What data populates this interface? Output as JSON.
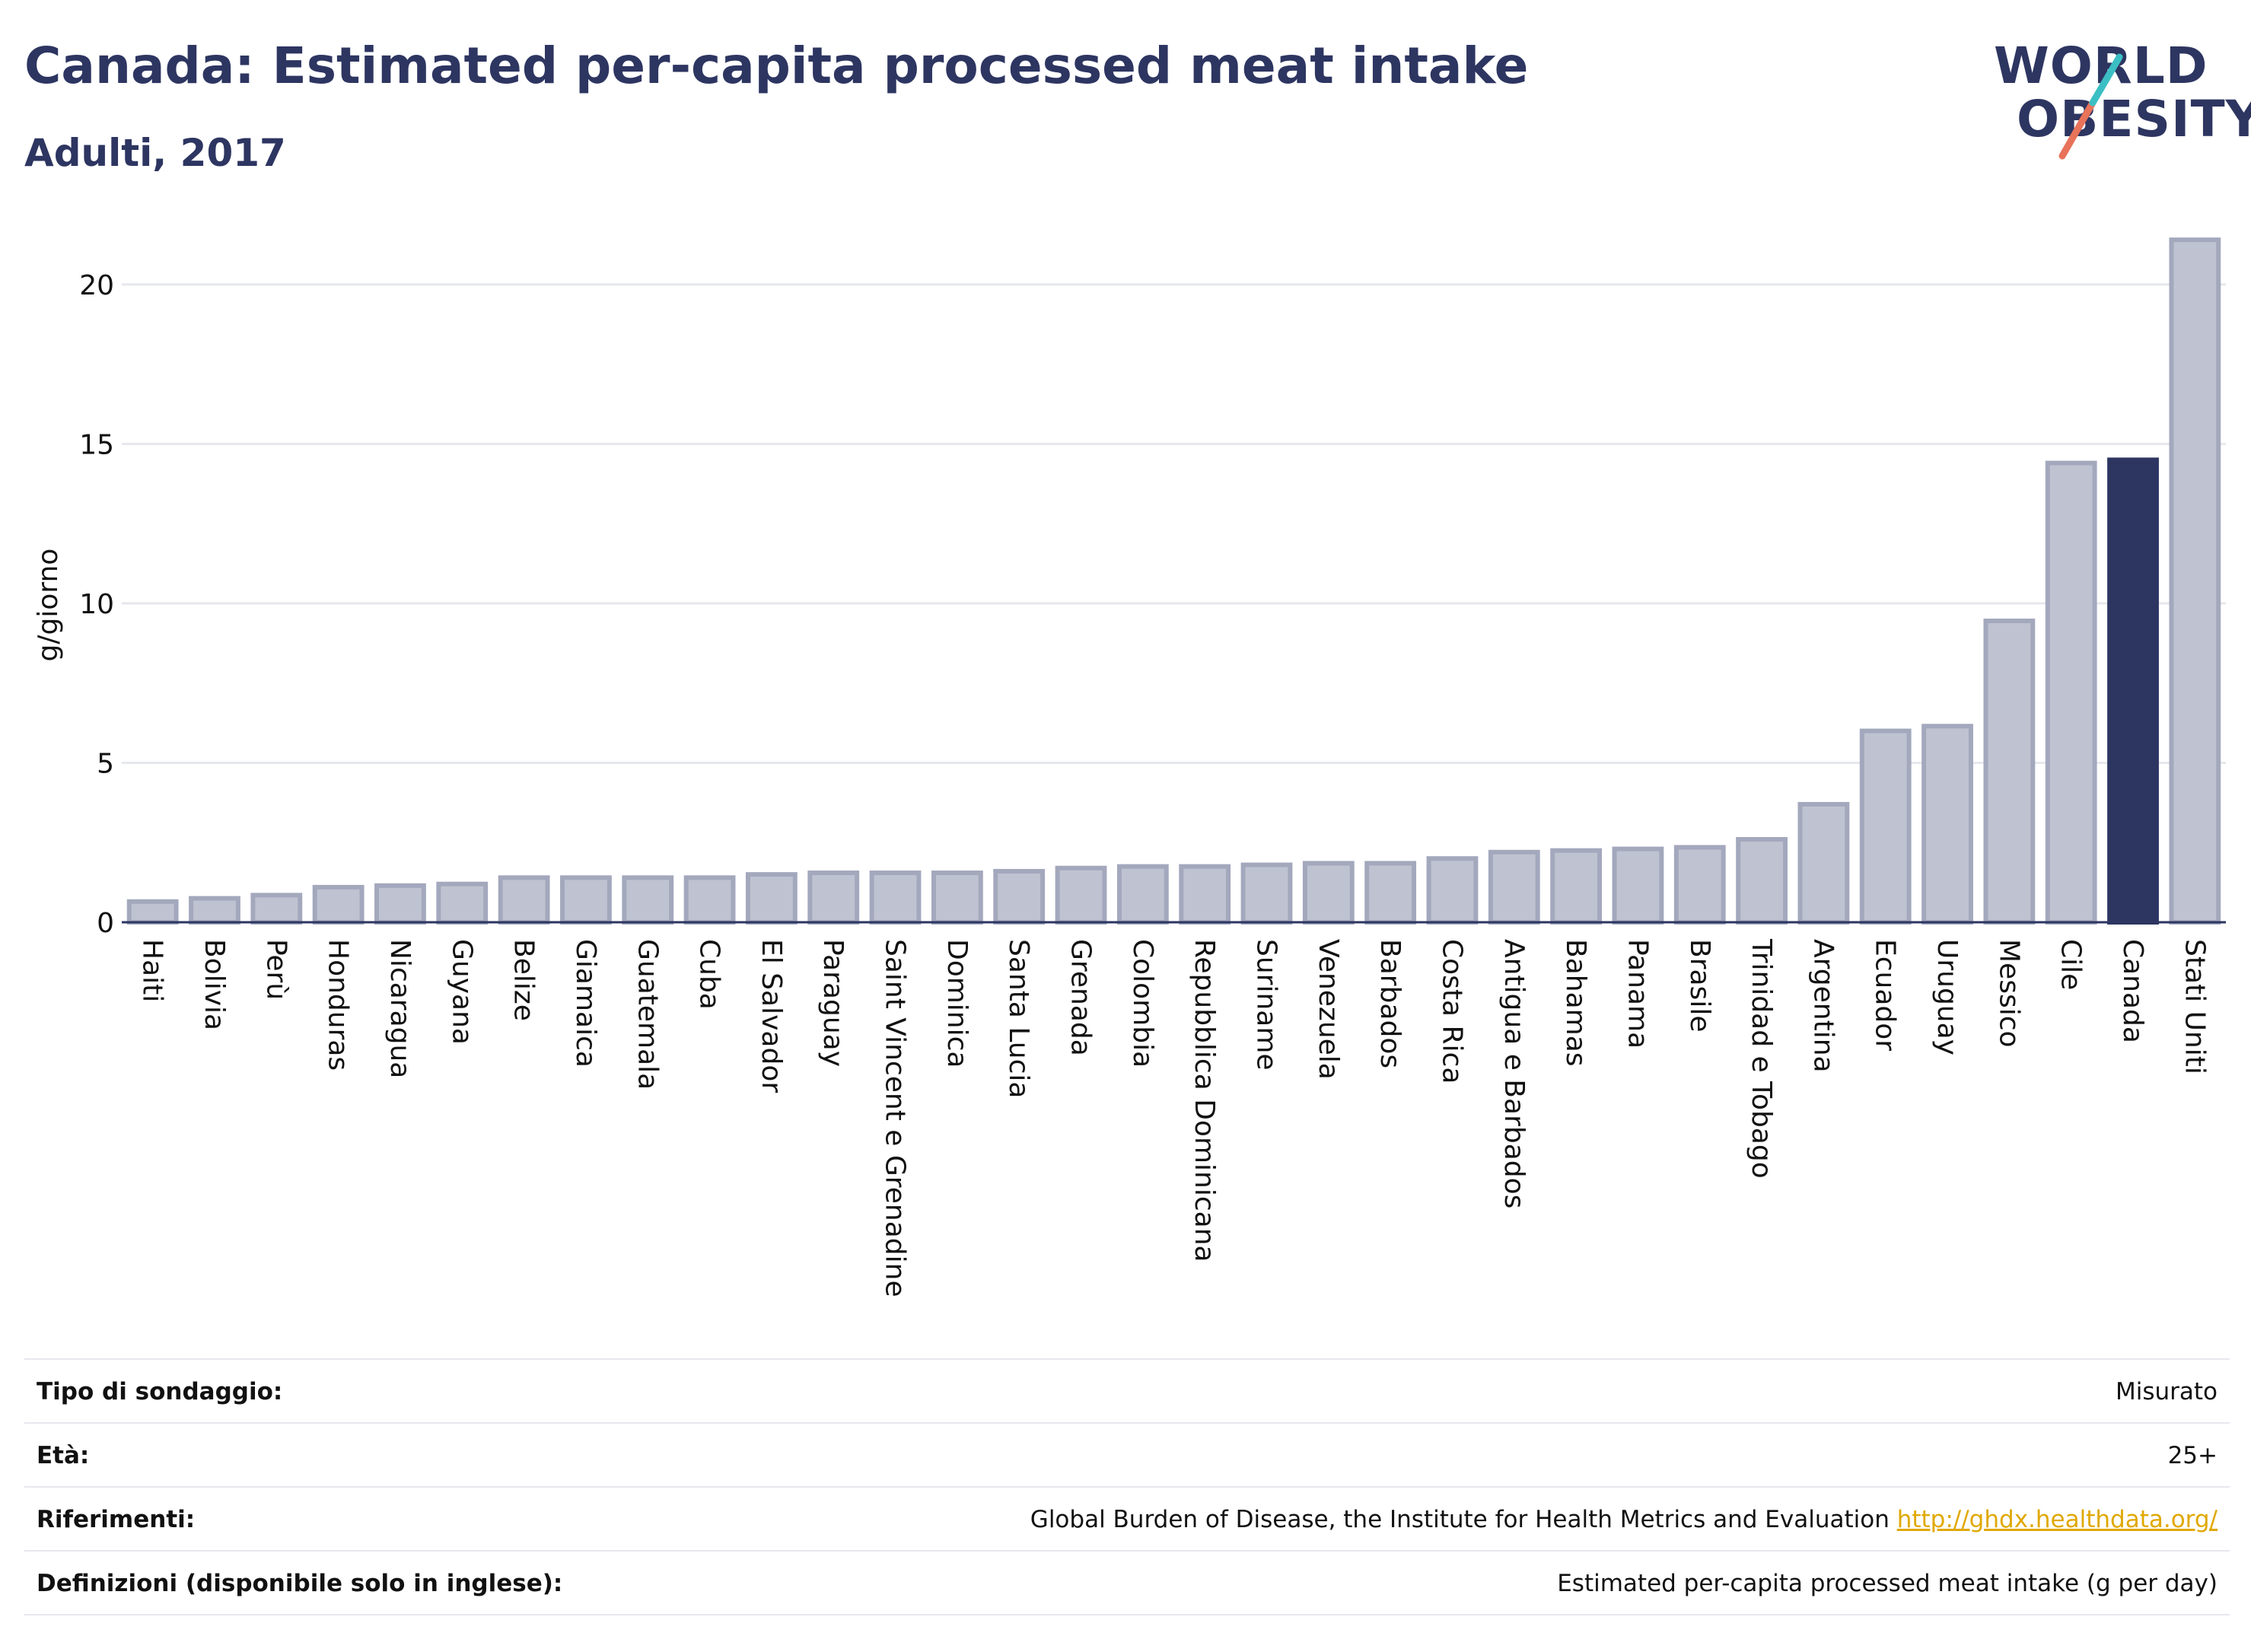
{
  "header": {
    "title": "Canada: Estimated per-capita processed meat intake",
    "subtitle": "Adulti, 2017"
  },
  "logo": {
    "line1": "WORLD",
    "line2": "OBESITY"
  },
  "colors": {
    "bar": "#bfc3d1",
    "bar_border": "#a3a8bd",
    "highlight": "#2d3561",
    "grid": "#e6e8ee",
    "text": "#2d3561"
  },
  "chart_data": {
    "type": "bar",
    "ylabel": "g/giorno",
    "xlabel": "",
    "ylim": [
      0,
      22
    ],
    "yticks": [
      0,
      5,
      10,
      15,
      20
    ],
    "highlight": "Canada",
    "grid": true,
    "categories": [
      "Haiti",
      "Bolivia",
      "Perù",
      "Honduras",
      "Nicaragua",
      "Guyana",
      "Belize",
      "Giamaica",
      "Guatemala",
      "Cuba",
      "El Salvador",
      "Paraguay",
      "Saint Vincent e Grenadine",
      "Dominica",
      "Santa Lucia",
      "Grenada",
      "Colombia",
      "Repubblica Dominicana",
      "Suriname",
      "Venezuela",
      "Barbados",
      "Costa Rica",
      "Antigua e Barbados",
      "Bahamas",
      "Panama",
      "Brasile",
      "Trinidad e Tobago",
      "Argentina",
      "Ecuador",
      "Uruguay",
      "Messico",
      "Cile",
      "Canada",
      "Stati Uniti"
    ],
    "values": [
      0.65,
      0.75,
      0.85,
      1.1,
      1.15,
      1.2,
      1.4,
      1.4,
      1.4,
      1.4,
      1.5,
      1.55,
      1.55,
      1.55,
      1.6,
      1.7,
      1.75,
      1.75,
      1.8,
      1.85,
      1.85,
      2.0,
      2.2,
      2.25,
      2.3,
      2.35,
      2.6,
      3.7,
      6.0,
      6.15,
      9.45,
      14.4,
      14.5,
      21.4
    ]
  },
  "meta": [
    {
      "label": "Tipo di sondaggio:",
      "value": "Misurato"
    },
    {
      "label": "Età:",
      "value": "25+"
    },
    {
      "label": "Riferimenti:",
      "value": "Global Burden of Disease, the Institute for Health Metrics and Evaluation",
      "link": "http://ghdx.healthdata.org/"
    },
    {
      "label": "Definizioni (disponibile solo in inglese):",
      "value": "Estimated per-capita processed meat intake (g per day)"
    }
  ]
}
